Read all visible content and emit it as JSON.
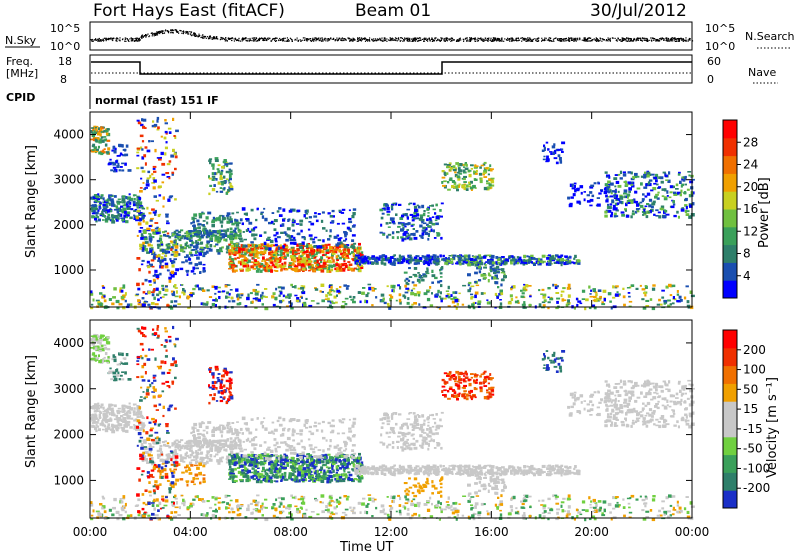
{
  "header": {
    "station": "Fort Hays East (fitACF)",
    "beam": "Beam 01",
    "date": "30/Jul/2012"
  },
  "top_panels": {
    "nsky_label": "N.Sky",
    "nsearch_label": "N.Search",
    "noise_ticks": [
      "10^5",
      "10^0"
    ],
    "freq_label": "Freq.",
    "freq_unit": "[MHz]",
    "freq_ticks": [
      "18",
      "8"
    ],
    "nave_label": "Nave",
    "nave_ticks": [
      "60",
      "0"
    ],
    "cpid_label": "CPID",
    "cpid_text": "normal (fast) 151 IF"
  },
  "chart_data": [
    {
      "type": "heatmap",
      "name": "power",
      "ylabel": "Slant Range [km]",
      "ylim": [
        180,
        4500
      ],
      "yticks": [
        1000,
        2000,
        3000,
        4000
      ],
      "xlabel": "",
      "xlim": [
        0,
        24
      ],
      "colorbar_label": "Power [dB]",
      "colorbar_ticks": [
        4,
        8,
        12,
        16,
        20,
        24,
        28
      ],
      "colorbar_colors": [
        "#0000ff",
        "#1a4fb0",
        "#2e7f6a",
        "#3aa05a",
        "#70c040",
        "#c8d020",
        "#f0a000",
        "#f07000",
        "#f03000",
        "#ff0000"
      ]
    },
    {
      "type": "heatmap",
      "name": "velocity",
      "ylabel": "Slant Range [km]",
      "ylim": [
        180,
        4500
      ],
      "yticks": [
        1000,
        2000,
        3000,
        4000
      ],
      "xlabel": "Time UT",
      "xlim": [
        0,
        24
      ],
      "xticks": [
        "00:00",
        "04:00",
        "08:00",
        "12:00",
        "16:00",
        "20:00",
        "00:00"
      ],
      "colorbar_label": "Velocity [m s⁻¹]",
      "colorbar_ticks": [
        "200",
        "100",
        "50",
        "15",
        "-15",
        "-50",
        "-100",
        "-200"
      ],
      "colorbar_colors": [
        "#1a2fc8",
        "#2e7f6a",
        "#3aa05a",
        "#70d040",
        "#c8c8c8",
        "#c8c8c8",
        "#f0a000",
        "#f07000",
        "#f03000",
        "#ff0000"
      ]
    }
  ]
}
